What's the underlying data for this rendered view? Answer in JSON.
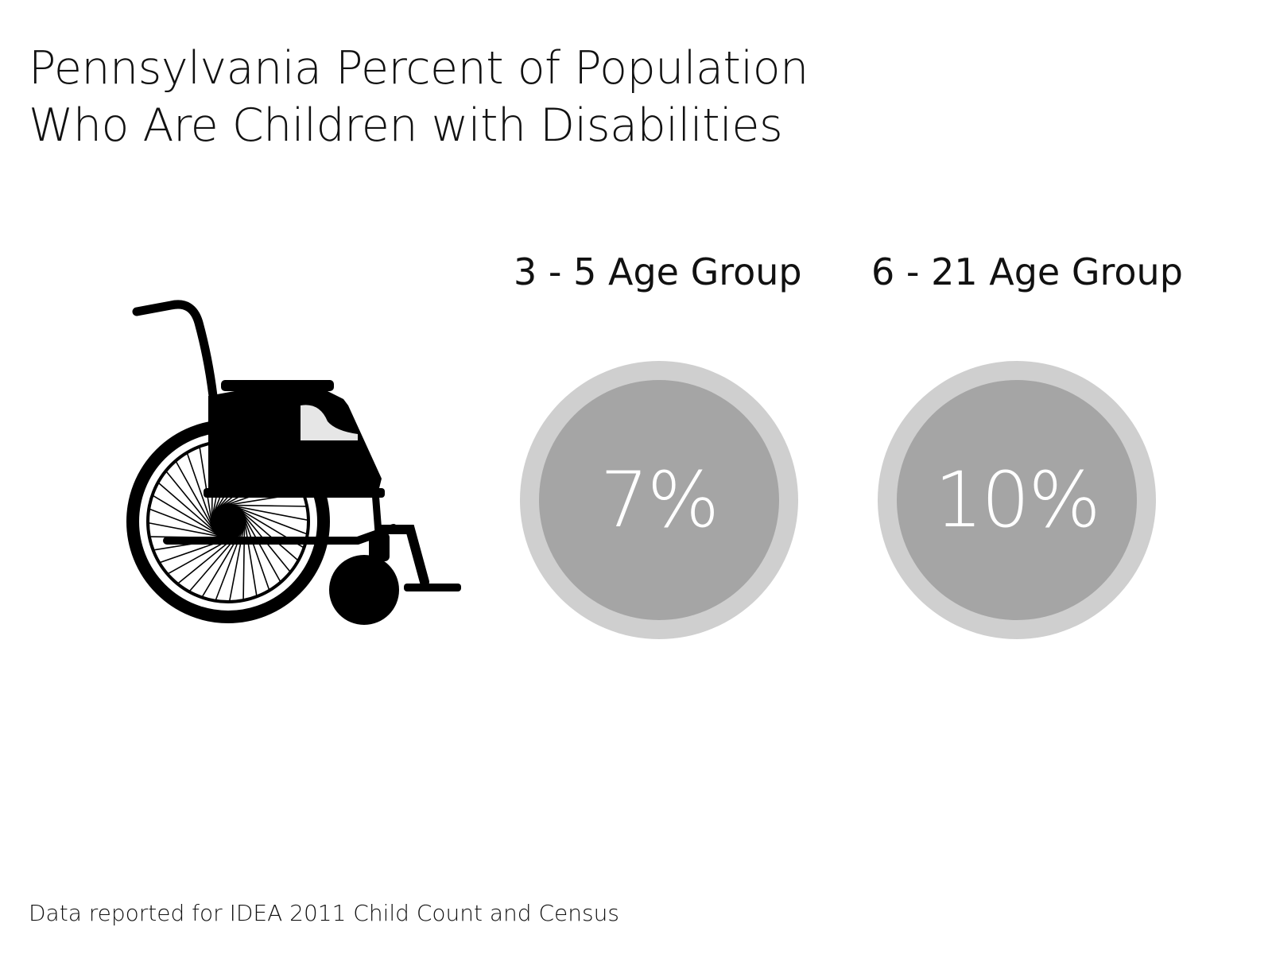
{
  "title": {
    "line1": "Pennsylvania Percent of Population",
    "line2": "Who Are Children with Disabilities"
  },
  "illustration": {
    "icon": "wheelchair-icon"
  },
  "groups": [
    {
      "label": "3 - 5 Age Group",
      "value": "7%"
    },
    {
      "label": "6 - 21 Age Group",
      "value": "10%"
    }
  ],
  "colors": {
    "ring": "#cfcfcf",
    "disc": "#a5a5a5",
    "value_text": "#ffffff"
  },
  "source": "Data reported for IDEA 2011 Child Count and Census"
}
